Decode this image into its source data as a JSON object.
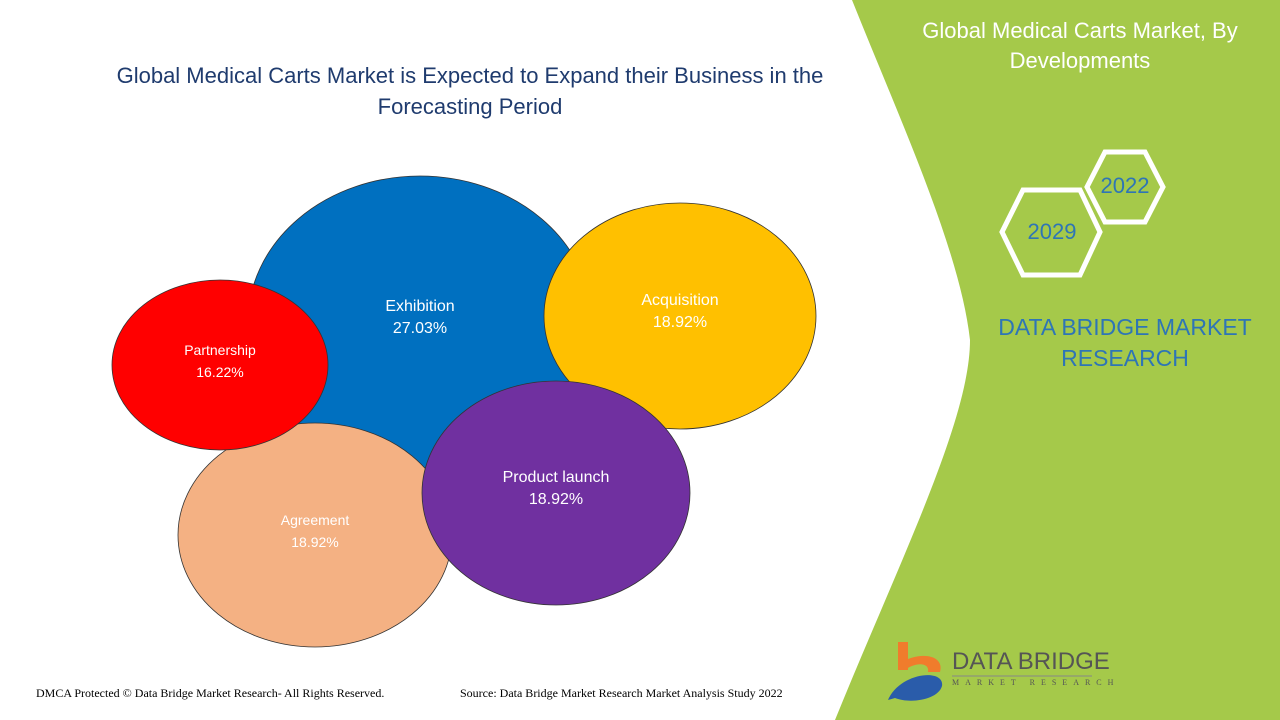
{
  "title": "Global Medical Carts Market is Expected to Expand their Business in the Forecasting Period",
  "side_panel": {
    "title": "Global Medical Carts Market, By Developments",
    "years": [
      "2029",
      "2022"
    ],
    "brand": "DATA BRIDGE MARKET RESEARCH",
    "logo_text": "DATA BRIDGE",
    "logo_sub": "MARKET RESEARCH"
  },
  "footer": {
    "left": "DMCA Protected © Data Bridge Market Research- All Rights Reserved.",
    "right": "Source: Data Bridge Market Research Market Analysis Study 2022"
  },
  "colors": {
    "panel": "#a5c94a",
    "Exhibition": "#0070c0",
    "Acquisition": "#ffc000",
    "Partnership": "#ff0000",
    "Agreement": "#f4b183",
    "Product launch": "#7030a0"
  },
  "chart_data": {
    "type": "bubble",
    "title": "Global Medical Carts Market is Expected to Expand their Business in the Forecasting Period",
    "categories": [
      "Exhibition",
      "Acquisition",
      "Agreement",
      "Partnership",
      "Product launch"
    ],
    "values": [
      27.03,
      18.92,
      18.92,
      16.22,
      18.92
    ],
    "labels": [
      "27.03%",
      "18.92%",
      "18.92%",
      "16.22%",
      "18.92%"
    ]
  }
}
